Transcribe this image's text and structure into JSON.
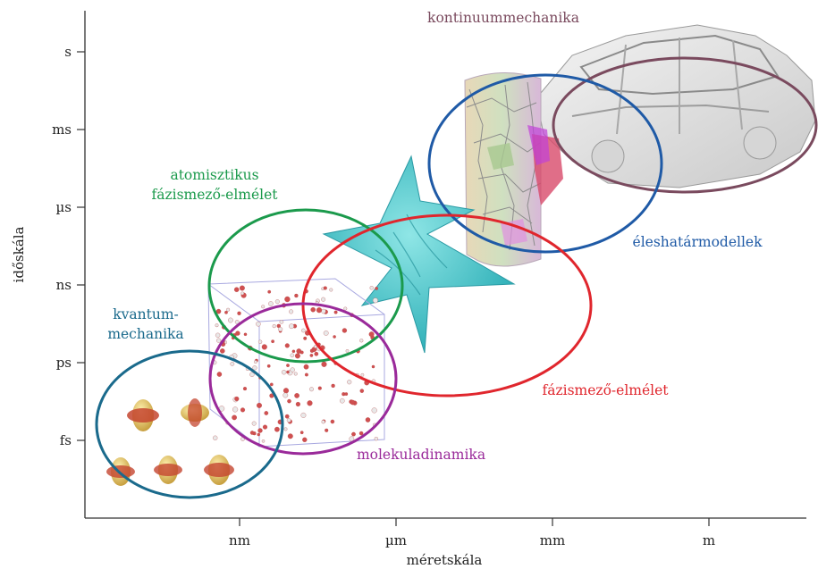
{
  "axes": {
    "x_title": "méretskála",
    "y_title": "időskála",
    "x_ticks": [
      "nm",
      "µm",
      "mm",
      "m"
    ],
    "y_ticks": [
      "s",
      "ms",
      "µs",
      "ns",
      "ps",
      "fs"
    ]
  },
  "regions": {
    "continuum": {
      "label": "kontinuummechanika",
      "color": "#7a4a5e"
    },
    "grain": {
      "label": "éleshatármodellek",
      "color": "#1f5aa6"
    },
    "atomistic": {
      "label_line1": "atomisztikus",
      "label_line2": "fázismező-elmélet",
      "color": "#1b9a4c"
    },
    "phasefield": {
      "label": "fázismező-elmélet",
      "color": "#e0262d"
    },
    "molecular": {
      "label": "molekuladinamika",
      "color": "#9a2a9a"
    },
    "quantum": {
      "label_line1": "kvantum-",
      "label_line2": "mechanika",
      "color": "#1a6a8c"
    }
  }
}
